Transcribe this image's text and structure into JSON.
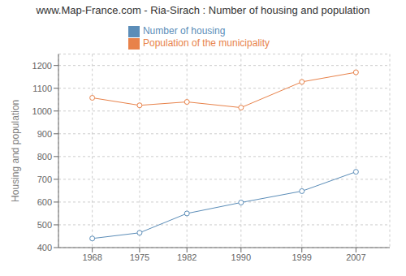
{
  "chart_data": {
    "type": "line",
    "title": "www.Map-France.com - Ria-Sirach : Number of housing and population",
    "ylabel": "Housing and population",
    "x": [
      1968,
      1975,
      1982,
      1990,
      1999,
      2007
    ],
    "series": [
      {
        "name": "Number of housing",
        "color": "#5b8db8",
        "marker": "circle",
        "values": [
          440,
          465,
          550,
          598,
          648,
          733
        ]
      },
      {
        "name": "Population of the municipality",
        "color": "#e8824a",
        "marker": "circle",
        "values": [
          1058,
          1025,
          1040,
          1015,
          1128,
          1170
        ]
      }
    ],
    "xlim": [
      1963,
      2012
    ],
    "xticks": [
      1968,
      1975,
      1982,
      1990,
      1999,
      2007
    ],
    "ylim": [
      400,
      1250
    ],
    "yticks": [
      400,
      500,
      600,
      700,
      800,
      900,
      1000,
      1100,
      1200
    ],
    "grid": true,
    "legend": "top"
  }
}
